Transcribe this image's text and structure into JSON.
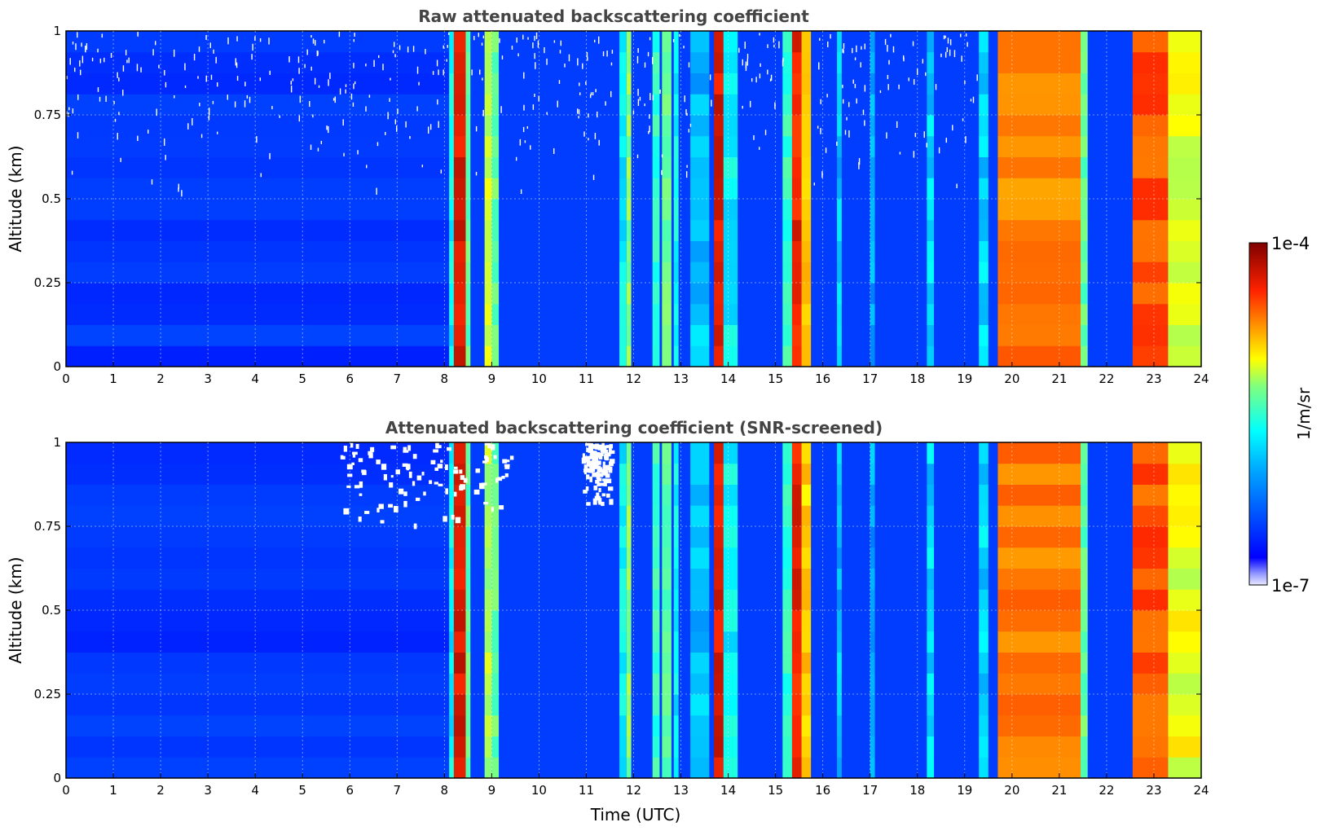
{
  "chart_data": [
    {
      "type": "heatmap",
      "title": "Raw attenuated backscattering coefficient",
      "xlabel": "",
      "ylabel": "Altitude (km)",
      "xlim": [
        0,
        24
      ],
      "ylim": [
        0,
        1
      ],
      "x_ticks": [
        "0",
        "1",
        "2",
        "3",
        "4",
        "5",
        "6",
        "7",
        "8",
        "9",
        "10",
        "11",
        "12",
        "13",
        "14",
        "15",
        "16",
        "17",
        "18",
        "19",
        "20",
        "21",
        "22",
        "23",
        "24"
      ],
      "y_ticks": [
        "0",
        "0.25",
        "0.5",
        "0.75",
        "1"
      ],
      "grid": true,
      "colormap": "jet",
      "color_scale": "log",
      "background_level": 0.22,
      "noise_speckle_above_km": 0.5,
      "columns": [
        {
          "t0": 0.0,
          "t1": 8.1,
          "level": 0.2
        },
        {
          "t0": 8.1,
          "t1": 8.2,
          "level": 0.45
        },
        {
          "t0": 8.2,
          "t1": 8.45,
          "level": 0.9
        },
        {
          "t0": 8.45,
          "t1": 8.55,
          "level": 0.55
        },
        {
          "t0": 8.85,
          "t1": 9.0,
          "level": 0.62
        },
        {
          "t0": 9.0,
          "t1": 9.15,
          "level": 0.55
        },
        {
          "t0": 11.7,
          "t1": 11.85,
          "level": 0.45
        },
        {
          "t0": 11.85,
          "t1": 11.95,
          "level": 0.58
        },
        {
          "t0": 12.4,
          "t1": 12.55,
          "level": 0.5
        },
        {
          "t0": 12.6,
          "t1": 12.8,
          "level": 0.55
        },
        {
          "t0": 12.85,
          "t1": 12.95,
          "level": 0.45
        },
        {
          "t0": 13.2,
          "t1": 13.6,
          "level": 0.4
        },
        {
          "t0": 13.7,
          "t1": 13.9,
          "level": 0.9
        },
        {
          "t0": 13.9,
          "t1": 14.2,
          "level": 0.45
        },
        {
          "t0": 15.15,
          "t1": 15.35,
          "level": 0.5
        },
        {
          "t0": 15.35,
          "t1": 15.55,
          "level": 0.88
        },
        {
          "t0": 15.55,
          "t1": 15.75,
          "level": 0.7
        },
        {
          "t0": 16.3,
          "t1": 16.4,
          "level": 0.4
        },
        {
          "t0": 17.0,
          "t1": 17.1,
          "level": 0.38
        },
        {
          "t0": 18.2,
          "t1": 18.35,
          "level": 0.42
        },
        {
          "t0": 19.3,
          "t1": 19.5,
          "level": 0.42
        },
        {
          "t0": 19.7,
          "t1": 21.45,
          "level": 0.78
        },
        {
          "t0": 21.45,
          "t1": 21.6,
          "level": 0.55
        },
        {
          "t0": 22.55,
          "t1": 23.3,
          "level": 0.82
        },
        {
          "t0": 23.3,
          "t1": 24.0,
          "level": 0.65
        }
      ]
    },
    {
      "type": "heatmap",
      "title": "Attenuated backscattering coefficient (SNR-screened)",
      "xlabel": "Time (UTC)",
      "ylabel": "Altitude (km)",
      "xlim": [
        0,
        24
      ],
      "ylim": [
        0,
        1
      ],
      "x_ticks": [
        "0",
        "1",
        "2",
        "3",
        "4",
        "5",
        "6",
        "7",
        "8",
        "9",
        "10",
        "11",
        "12",
        "13",
        "14",
        "15",
        "16",
        "17",
        "18",
        "19",
        "20",
        "21",
        "22",
        "23",
        "24"
      ],
      "y_ticks": [
        "0",
        "0.25",
        "0.5",
        "0.75",
        "1"
      ],
      "grid": true,
      "colormap": "jet",
      "color_scale": "log",
      "background_level": 0.22,
      "masked_regions": [
        {
          "t0": 5.8,
          "t1": 9.5,
          "z0": 0.75,
          "z1": 1.0
        },
        {
          "t0": 10.9,
          "t1": 11.5,
          "z0": 0.82,
          "z1": 1.0
        }
      ],
      "columns": [
        {
          "t0": 0.0,
          "t1": 8.1,
          "level": 0.2
        },
        {
          "t0": 8.1,
          "t1": 8.2,
          "level": 0.45
        },
        {
          "t0": 8.2,
          "t1": 8.45,
          "level": 0.9
        },
        {
          "t0": 8.45,
          "t1": 8.55,
          "level": 0.55
        },
        {
          "t0": 8.85,
          "t1": 9.0,
          "level": 0.62
        },
        {
          "t0": 9.0,
          "t1": 9.15,
          "level": 0.55
        },
        {
          "t0": 11.7,
          "t1": 11.85,
          "level": 0.45
        },
        {
          "t0": 11.85,
          "t1": 11.95,
          "level": 0.58
        },
        {
          "t0": 12.4,
          "t1": 12.55,
          "level": 0.5
        },
        {
          "t0": 12.6,
          "t1": 12.8,
          "level": 0.55
        },
        {
          "t0": 12.85,
          "t1": 12.95,
          "level": 0.45
        },
        {
          "t0": 13.2,
          "t1": 13.6,
          "level": 0.4
        },
        {
          "t0": 13.7,
          "t1": 13.9,
          "level": 0.9
        },
        {
          "t0": 13.9,
          "t1": 14.2,
          "level": 0.45
        },
        {
          "t0": 15.15,
          "t1": 15.35,
          "level": 0.5
        },
        {
          "t0": 15.35,
          "t1": 15.55,
          "level": 0.88
        },
        {
          "t0": 15.55,
          "t1": 15.75,
          "level": 0.7
        },
        {
          "t0": 16.3,
          "t1": 16.4,
          "level": 0.4
        },
        {
          "t0": 17.0,
          "t1": 17.1,
          "level": 0.38
        },
        {
          "t0": 18.2,
          "t1": 18.35,
          "level": 0.42
        },
        {
          "t0": 19.3,
          "t1": 19.5,
          "level": 0.42
        },
        {
          "t0": 19.7,
          "t1": 21.45,
          "level": 0.78
        },
        {
          "t0": 21.45,
          "t1": 21.6,
          "level": 0.55
        },
        {
          "t0": 22.55,
          "t1": 23.3,
          "level": 0.82
        },
        {
          "t0": 23.3,
          "t1": 24.0,
          "level": 0.65
        }
      ]
    }
  ],
  "colorbar": {
    "max_label": "1e-4",
    "min_label": "1e-7",
    "label": "1/m/sr",
    "colormap": "jet",
    "scale": "log"
  }
}
